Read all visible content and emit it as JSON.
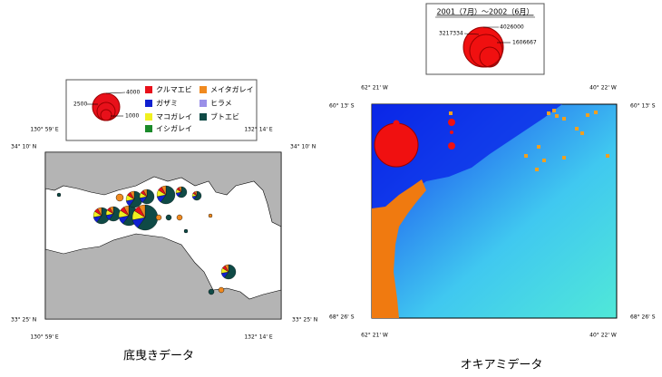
{
  "left_panel": {
    "legend": {
      "sizes": [
        "4000",
        "2500",
        "1000"
      ],
      "species": [
        {
          "name": "クルマエビ",
          "color": "#e8101a"
        },
        {
          "name": "ガザミ",
          "color": "#1020d0"
        },
        {
          "name": "マコガレイ",
          "color": "#f0f020"
        },
        {
          "name": "イシガレイ",
          "color": "#1a8a2a"
        },
        {
          "name": "メイタガレイ",
          "color": "#f08a20"
        },
        {
          "name": "ヒラメ",
          "color": "#9a90e8"
        },
        {
          "name": "ブトエビ",
          "color": "#0f4a46"
        }
      ]
    },
    "map_labels": [
      "130° 59' E",
      "132° 14' E",
      "34° 10' N",
      "34° 10' N",
      "33° 25' N",
      "33° 25' N",
      "130° 59' E",
      "132° 14' E"
    ],
    "caption": "底曳きデータ"
  },
  "right_panel": {
    "legend": {
      "title": "2001（7月）～2002（6月）",
      "sizes": [
        "4026000",
        "3217334",
        "1606667"
      ]
    },
    "map_labels": [
      "62° 21' W",
      "40° 22' W",
      "60° 13' S",
      "60° 13' S",
      "68° 26' S",
      "68° 26' S",
      "62° 21' W",
      "40° 22' W"
    ],
    "caption": "オキアミデータ"
  }
}
